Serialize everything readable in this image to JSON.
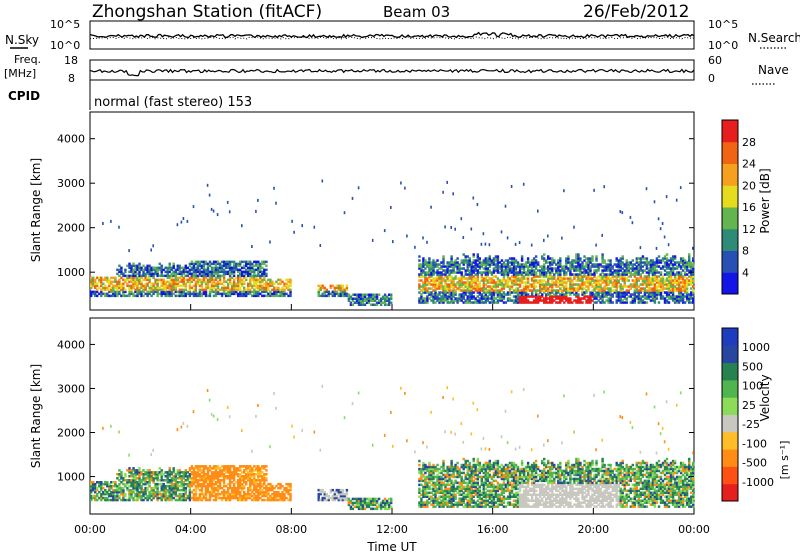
{
  "header": {
    "title": "Zhongshan Station (fitACF)",
    "beam": "Beam 03",
    "date": "26/Feb/2012"
  },
  "noise_panel": {
    "left_label": "N.Sky",
    "right_label": "N.Search",
    "left_ticks": [
      "10^5",
      "10^0"
    ],
    "right_ticks": [
      "10^5",
      "10^0"
    ]
  },
  "freq_panel": {
    "left_label_1": "Freq.",
    "left_label_2": "[MHz]",
    "right_label": "Nave",
    "left_ticks": [
      "18",
      "8"
    ],
    "right_ticks": [
      "60",
      "0"
    ]
  },
  "cpid_panel": {
    "label": "CPID",
    "text": "normal (fast stereo) 153"
  },
  "colors": {
    "power_scale": [
      "#1414e6",
      "#2850b4",
      "#2e8b78",
      "#64b450",
      "#e6dc1e",
      "#f5a01e",
      "#f06414",
      "#e61e1e"
    ],
    "velocity_scale": [
      "#e61e1e",
      "#ff5014",
      "#ff8c14",
      "#ffbe28",
      "#c8c8c0",
      "#8cdc5a",
      "#50b450",
      "#288250",
      "#2846a0",
      "#1e3cbe"
    ]
  },
  "chart_data": [
    {
      "type": "heatmap",
      "name": "power",
      "xlabel": "",
      "ylabel": "Slant Range [km]",
      "ylim": [
        150,
        4600
      ],
      "yticks": [
        "1000",
        "2000",
        "3000",
        "4000"
      ],
      "colorbar_label": "Power [dB]",
      "colorbar_ticks": [
        "4",
        "8",
        "12",
        "16",
        "20",
        "24",
        "28"
      ],
      "colorbar_range": [
        0,
        32
      ]
    },
    {
      "type": "heatmap",
      "name": "velocity",
      "xlabel": "Time UT",
      "ylabel": "Slant Range [km]",
      "ylim": [
        150,
        4600
      ],
      "yticks": [
        "1000",
        "2000",
        "3000",
        "4000"
      ],
      "xticks": [
        "00:00",
        "04:00",
        "08:00",
        "12:00",
        "16:00",
        "20:00",
        "00:00"
      ],
      "colorbar_label": "Velocity",
      "colorbar_unit": "[m s⁻¹]",
      "colorbar_ticks": [
        "1000",
        "500",
        "100",
        "25",
        "-25",
        "-100",
        "-500",
        "-1000"
      ]
    }
  ]
}
